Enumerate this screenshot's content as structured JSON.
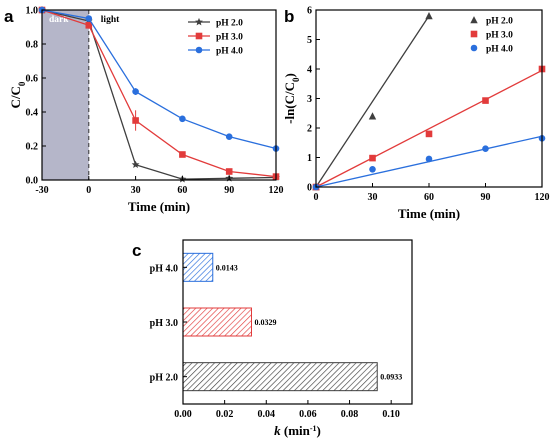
{
  "colors": {
    "ph20": "#3f3f3f",
    "ph30": "#e23b3b",
    "ph40": "#2a6fdd",
    "dark_region": "#b5b6c9"
  },
  "chart_data": [
    {
      "panel": "a",
      "type": "line",
      "title": "",
      "xlabel": "Time (min)",
      "ylabel": "C/C0",
      "xlim": [
        -30,
        120
      ],
      "ylim": [
        0.0,
        1.0
      ],
      "xticks": [
        -30,
        0,
        30,
        60,
        90,
        120
      ],
      "yticks": [
        0.0,
        0.2,
        0.4,
        0.6,
        0.8,
        1.0
      ],
      "x": [
        -30,
        0,
        30,
        60,
        90,
        120
      ],
      "regions": [
        {
          "label": "dark",
          "from": -30,
          "to": 0
        },
        {
          "label": "light",
          "from": 0,
          "to": 120
        }
      ],
      "legend_position": "top-right",
      "series": [
        {
          "name": "pH 2.0",
          "color": "#3f3f3f",
          "marker": "star",
          "values": [
            1.0,
            0.935,
            0.09,
            0.005,
            0.01,
            0.015
          ],
          "errors": [
            0.01,
            0.01,
            0.01,
            0.005,
            0.005,
            0.005
          ]
        },
        {
          "name": "pH 3.0",
          "color": "#e23b3b",
          "marker": "square",
          "values": [
            1.0,
            0.91,
            0.35,
            0.15,
            0.05,
            0.02
          ],
          "errors": [
            0.01,
            0.02,
            0.06,
            0.015,
            0.01,
            0.01
          ]
        },
        {
          "name": "pH 4.0",
          "color": "#2a6fdd",
          "marker": "circle",
          "values": [
            1.0,
            0.95,
            0.52,
            0.36,
            0.255,
            0.185
          ],
          "errors": [
            0.01,
            0.01,
            0.02,
            0.015,
            0.01,
            0.01
          ]
        }
      ]
    },
    {
      "panel": "b",
      "type": "scatter",
      "title": "",
      "xlabel": "Time (min)",
      "ylabel": "-ln(C/C0)",
      "xlim": [
        0,
        120
      ],
      "ylim": [
        0,
        6
      ],
      "xticks": [
        0,
        30,
        60,
        90,
        120
      ],
      "yticks": [
        0,
        1,
        2,
        3,
        4,
        5,
        6
      ],
      "legend_position": "top-right",
      "series": [
        {
          "name": "pH 2.0",
          "color": "#3f3f3f",
          "marker": "triangle",
          "x": [
            0,
            30,
            60
          ],
          "values": [
            0.0,
            2.4,
            5.8
          ],
          "fit": {
            "x": [
              0,
              60
            ],
            "y": [
              0.0,
              5.8
            ]
          }
        },
        {
          "name": "pH 3.0",
          "color": "#e23b3b",
          "marker": "square",
          "x": [
            0,
            30,
            60,
            90,
            120
          ],
          "values": [
            0.0,
            0.98,
            1.8,
            2.93,
            4.0
          ],
          "fit": {
            "x": [
              0,
              120
            ],
            "y": [
              0.0,
              3.95
            ]
          }
        },
        {
          "name": "pH 4.0",
          "color": "#2a6fdd",
          "marker": "circle",
          "x": [
            0,
            30,
            60,
            90,
            120
          ],
          "values": [
            0.0,
            0.6,
            0.95,
            1.3,
            1.65
          ],
          "fit": {
            "x": [
              0,
              120
            ],
            "y": [
              0.0,
              1.72
            ]
          }
        }
      ]
    },
    {
      "panel": "c",
      "type": "bar",
      "orientation": "horizontal",
      "title": "",
      "xlabel": "k (min-1)",
      "ylabel": "",
      "xlim": [
        0.0,
        0.11
      ],
      "xticks": [
        "0.00",
        "0.02",
        "0.04",
        "0.06",
        "0.08",
        "0.10"
      ],
      "categories": [
        "pH 4.0",
        "pH 3.0",
        "pH 2.0"
      ],
      "values": [
        0.0143,
        0.0329,
        0.0933
      ],
      "value_labels": [
        "0.0143",
        "0.0329",
        "0.0933"
      ],
      "bar_colors": [
        "#2a6fdd",
        "#e23b3b",
        "#3f3f3f"
      ],
      "fill": "hatched"
    }
  ]
}
